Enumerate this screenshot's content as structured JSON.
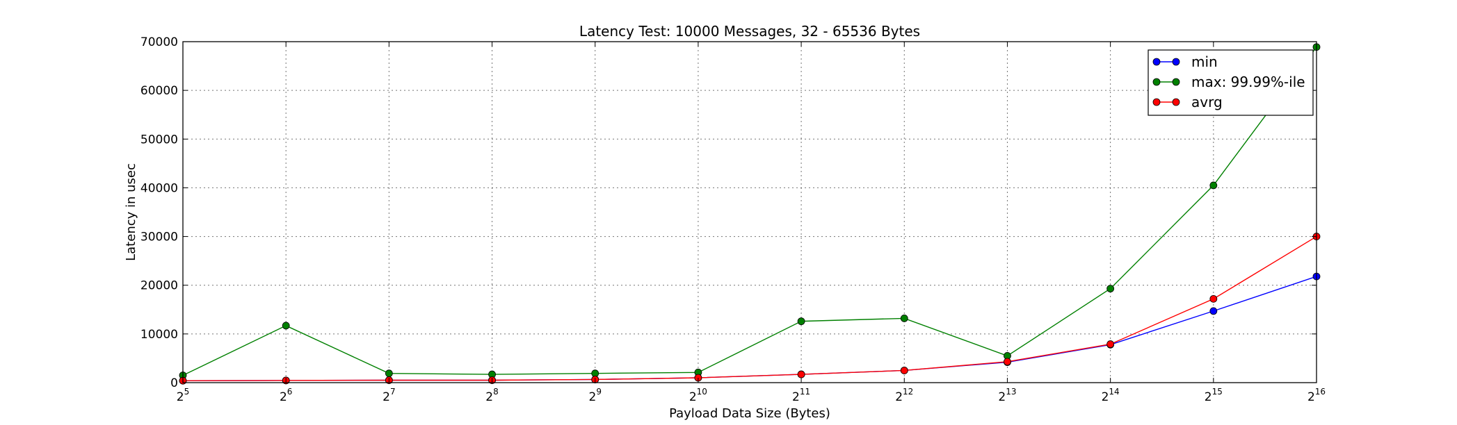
{
  "chart_data": {
    "type": "line",
    "title": "Latency Test: 10000 Messages, 32 - 65536 Bytes",
    "xlabel": "Payload Data Size (Bytes)",
    "ylabel": "Latency in usec",
    "x_scale": "log2",
    "x": [
      32,
      64,
      128,
      256,
      512,
      1024,
      2048,
      4096,
      8192,
      16384,
      32768,
      65536
    ],
    "x_tick_labels": [
      {
        "base": "2",
        "exp": "5"
      },
      {
        "base": "2",
        "exp": "6"
      },
      {
        "base": "2",
        "exp": "7"
      },
      {
        "base": "2",
        "exp": "8"
      },
      {
        "base": "2",
        "exp": "9"
      },
      {
        "base": "2",
        "exp": "10"
      },
      {
        "base": "2",
        "exp": "11"
      },
      {
        "base": "2",
        "exp": "12"
      },
      {
        "base": "2",
        "exp": "13"
      },
      {
        "base": "2",
        "exp": "14"
      },
      {
        "base": "2",
        "exp": "15"
      },
      {
        "base": "2",
        "exp": "16"
      }
    ],
    "xlim": [
      32,
      65536
    ],
    "ylim": [
      0,
      70000
    ],
    "y_ticks": [
      "0",
      "10000",
      "20000",
      "30000",
      "40000",
      "50000",
      "60000",
      "70000"
    ],
    "grid": true,
    "legend_position": "top-right",
    "series": [
      {
        "name": "min",
        "color": "#0000ff",
        "values": [
          400,
          450,
          500,
          500,
          650,
          1000,
          1700,
          2500,
          4200,
          7800,
          14700,
          21800
        ]
      },
      {
        "name": "max: 99.99%-ile",
        "color": "#008000",
        "values": [
          1500,
          11700,
          1900,
          1700,
          1900,
          2100,
          12600,
          13200,
          5500,
          19300,
          40500,
          68900
        ]
      },
      {
        "name": "avrg",
        "color": "#ff0000",
        "values": [
          400,
          450,
          500,
          500,
          650,
          1000,
          1700,
          2500,
          4300,
          7900,
          17200,
          30000
        ]
      }
    ]
  }
}
